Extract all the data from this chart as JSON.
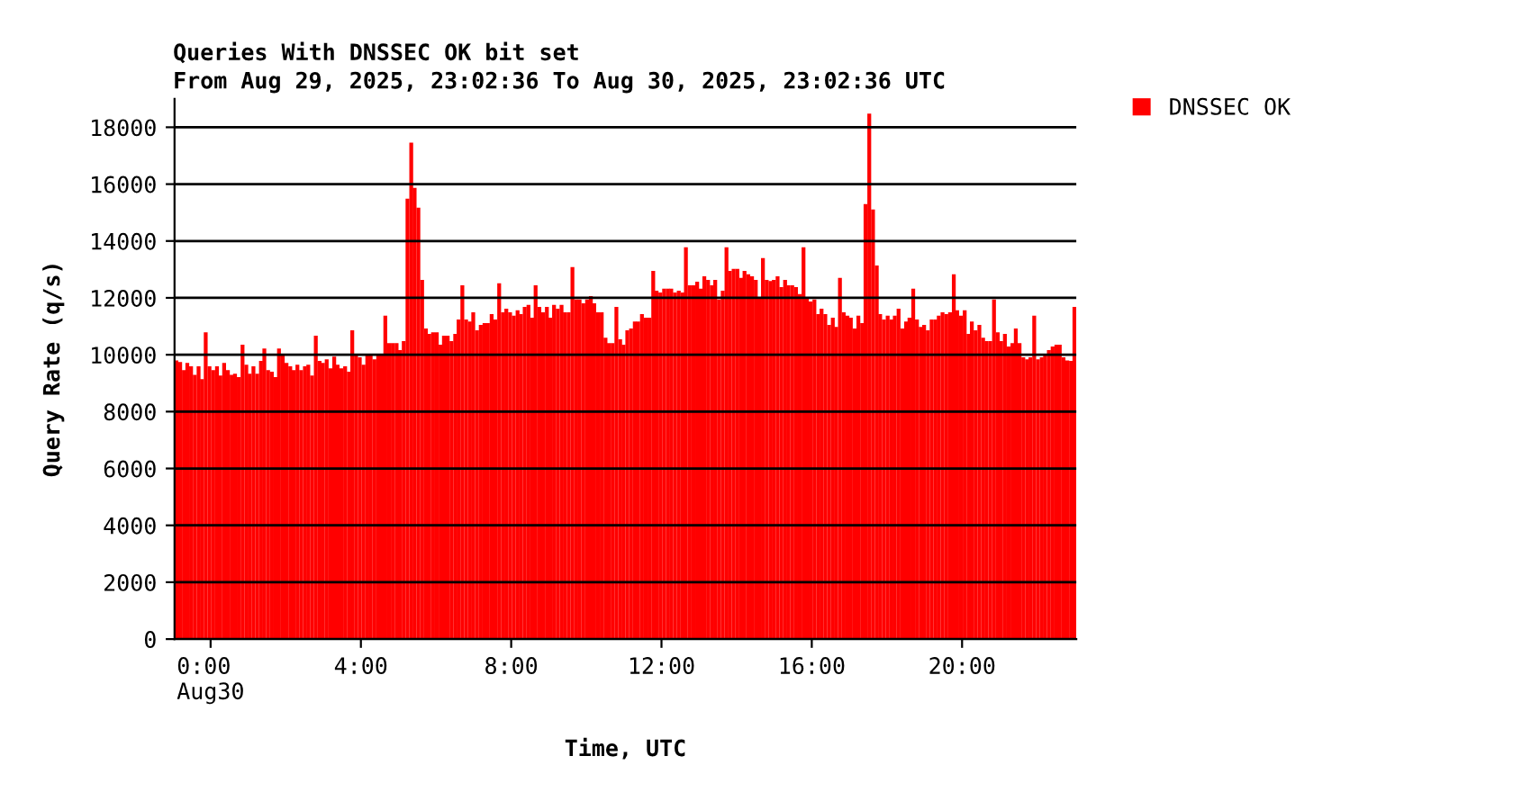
{
  "chart_data": {
    "type": "bar",
    "title": "Queries With DNSSEC OK bit set",
    "subtitle": "From Aug 29, 2025, 23:02:36 To Aug 30, 2025, 23:02:36 UTC",
    "xlabel": "Time, UTC",
    "ylabel": "Query Rate (q/s)",
    "x": [
      -0.91,
      -0.81,
      -0.71,
      -0.62,
      -0.52,
      -0.42,
      -0.32,
      -0.23,
      -0.13,
      -0.03,
      0.07,
      0.17,
      0.26,
      0.36,
      0.46,
      0.56,
      0.65,
      0.75,
      0.85,
      0.95,
      1.04,
      1.14,
      1.24,
      1.34,
      1.43,
      1.53,
      1.63,
      1.73,
      1.82,
      1.92,
      2.02,
      2.12,
      2.21,
      2.31,
      2.41,
      2.51,
      2.6,
      2.7,
      2.8,
      2.9,
      2.99,
      3.09,
      3.19,
      3.29,
      3.38,
      3.48,
      3.58,
      3.68,
      3.77,
      3.87,
      3.97,
      4.07,
      4.17,
      4.26,
      4.36,
      4.46,
      4.56,
      4.65,
      4.75,
      4.85,
      4.95,
      5.04,
      5.14,
      5.24,
      5.34,
      5.43,
      5.53,
      5.63,
      5.73,
      5.82,
      5.92,
      6.02,
      6.12,
      6.21,
      6.31,
      6.41,
      6.51,
      6.6,
      6.7,
      6.8,
      6.9,
      6.99,
      7.09,
      7.19,
      7.29,
      7.38,
      7.48,
      7.58,
      7.68,
      7.78,
      7.87,
      7.97,
      8.07,
      8.17,
      8.26,
      8.36,
      8.46,
      8.56,
      8.65,
      8.75,
      8.85,
      8.95,
      9.04,
      9.14,
      9.24,
      9.34,
      9.43,
      9.53,
      9.63,
      9.73,
      9.82,
      9.92,
      10.02,
      10.12,
      10.21,
      10.31,
      10.41,
      10.51,
      10.6,
      10.7,
      10.8,
      10.9,
      10.99,
      11.09,
      11.19,
      11.29,
      11.38,
      11.48,
      11.58,
      11.68,
      11.78,
      11.87,
      11.97,
      12.07,
      12.17,
      12.26,
      12.36,
      12.46,
      12.56,
      12.65,
      12.75,
      12.85,
      12.95,
      13.04,
      13.14,
      13.24,
      13.34,
      13.43,
      13.53,
      13.63,
      13.73,
      13.82,
      13.92,
      14.02,
      14.12,
      14.21,
      14.31,
      14.41,
      14.51,
      14.6,
      14.7,
      14.8,
      14.9,
      14.99,
      15.09,
      15.19,
      15.29,
      15.38,
      15.48,
      15.58,
      15.68,
      15.78,
      15.87,
      15.97,
      16.07,
      16.17,
      16.26,
      16.36,
      16.46,
      16.56,
      16.65,
      16.75,
      16.85,
      16.95,
      17.04,
      17.14,
      17.24,
      17.34,
      17.43,
      17.53,
      17.63,
      17.73,
      17.82,
      17.92,
      18.02,
      18.12,
      18.21,
      18.31,
      18.41,
      18.51,
      18.6,
      18.7,
      18.8,
      18.9,
      18.99,
      19.09,
      19.19,
      19.29,
      19.38,
      19.48,
      19.58,
      19.68,
      19.78,
      19.87,
      19.97,
      20.07,
      20.17,
      20.26,
      20.36,
      20.46,
      20.56,
      20.65,
      20.75,
      20.85,
      20.95,
      21.04,
      21.14,
      21.24,
      21.34,
      21.43,
      21.53,
      21.63,
      21.73,
      21.82,
      21.92,
      22.02,
      22.12,
      22.21,
      22.31,
      22.41,
      22.51,
      22.6,
      22.7,
      22.8,
      22.9,
      22.99
    ],
    "series": [
      {
        "name": "DNSSEC OK",
        "color": "#ff0000",
        "values": [
          9800,
          9740,
          9460,
          9710,
          9590,
          9290,
          9590,
          9140,
          10790,
          9590,
          9460,
          9590,
          9270,
          9710,
          9460,
          9290,
          9330,
          9210,
          10350,
          9650,
          9330,
          9590,
          9330,
          9780,
          10220,
          9460,
          9400,
          9210,
          10220,
          9970,
          9710,
          9590,
          9460,
          9650,
          9460,
          9590,
          9650,
          9270,
          10670,
          9780,
          9710,
          9840,
          9520,
          9930,
          9650,
          9520,
          9590,
          9400,
          10860,
          10030,
          9910,
          9650,
          10030,
          10030,
          9840,
          10030,
          10030,
          11370,
          10410,
          10410,
          10410,
          10160,
          10480,
          15490,
          17460,
          15870,
          15170,
          12630,
          10920,
          10730,
          10790,
          10790,
          10350,
          10670,
          10670,
          10480,
          10730,
          11240,
          12440,
          11240,
          11170,
          11490,
          10860,
          11050,
          11110,
          11110,
          11430,
          11240,
          12510,
          11490,
          11620,
          11490,
          11370,
          11560,
          11430,
          11680,
          11750,
          11300,
          12440,
          11680,
          11490,
          11680,
          11300,
          11750,
          11620,
          11750,
          11490,
          11490,
          13080,
          11940,
          11940,
          11810,
          11940,
          12060,
          11810,
          11490,
          11490,
          10600,
          10410,
          10410,
          11680,
          10540,
          10350,
          10860,
          10920,
          11170,
          11170,
          11430,
          11300,
          11300,
          12950,
          12250,
          12190,
          12320,
          12320,
          12320,
          12190,
          12250,
          12190,
          13780,
          12440,
          12440,
          12570,
          12320,
          12760,
          12630,
          12440,
          12630,
          11940,
          12250,
          13780,
          12950,
          13020,
          13020,
          12700,
          12950,
          12830,
          12760,
          12630,
          12000,
          13400,
          12630,
          12590,
          12630,
          12760,
          12380,
          12630,
          12440,
          12440,
          12380,
          12130,
          13780,
          12000,
          11870,
          11940,
          11430,
          11620,
          11430,
          11050,
          11300,
          10980,
          12700,
          11490,
          11370,
          11300,
          10920,
          11370,
          11110,
          15300,
          18480,
          15110,
          13140,
          11430,
          11240,
          11370,
          11240,
          11370,
          11620,
          10920,
          11170,
          11300,
          12320,
          11240,
          10980,
          11050,
          10860,
          11240,
          11240,
          11370,
          11490,
          11430,
          11490,
          12830,
          11560,
          11370,
          11560,
          10730,
          11170,
          10860,
          11050,
          10600,
          10480,
          10480,
          11940,
          10790,
          10480,
          10730,
          10290,
          10410,
          10920,
          10410,
          9910,
          9840,
          9910,
          11370,
          9840,
          9910,
          10030,
          10160,
          10290,
          10350,
          10350,
          9910,
          9800,
          9780,
          11680
        ]
      }
    ],
    "xlim": [
      -0.96,
      23.04
    ],
    "ylim": [
      0,
      19000
    ],
    "xticks": [
      {
        "value": 0,
        "label": "0:00\nAug30"
      },
      {
        "value": 4,
        "label": "4:00"
      },
      {
        "value": 8,
        "label": "8:00"
      },
      {
        "value": 12,
        "label": "12:00"
      },
      {
        "value": 16,
        "label": "16:00"
      },
      {
        "value": 20,
        "label": "20:00"
      }
    ],
    "yticks": [
      0,
      2000,
      4000,
      6000,
      8000,
      10000,
      12000,
      14000,
      16000,
      18000
    ],
    "grid": "y",
    "legend": "top right"
  }
}
